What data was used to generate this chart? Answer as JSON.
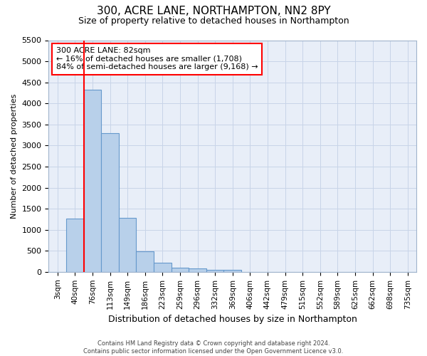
{
  "title": "300, ACRE LANE, NORTHAMPTON, NN2 8PY",
  "subtitle": "Size of property relative to detached houses in Northampton",
  "xlabel": "Distribution of detached houses by size in Northampton",
  "ylabel": "Number of detached properties",
  "footer_line1": "Contains HM Land Registry data © Crown copyright and database right 2024.",
  "footer_line2": "Contains public sector information licensed under the Open Government Licence v3.0.",
  "bar_labels": [
    "3sqm",
    "40sqm",
    "76sqm",
    "113sqm",
    "149sqm",
    "186sqm",
    "223sqm",
    "259sqm",
    "296sqm",
    "332sqm",
    "369sqm",
    "406sqm",
    "442sqm",
    "479sqm",
    "515sqm",
    "552sqm",
    "589sqm",
    "625sqm",
    "662sqm",
    "698sqm",
    "735sqm"
  ],
  "bar_values": [
    0,
    1270,
    4330,
    3300,
    1280,
    480,
    210,
    95,
    75,
    50,
    45,
    0,
    0,
    0,
    0,
    0,
    0,
    0,
    0,
    0,
    0
  ],
  "bar_color": "#b8d0ea",
  "bar_edge_color": "#6699cc",
  "ylim": [
    0,
    5500
  ],
  "yticks": [
    0,
    500,
    1000,
    1500,
    2000,
    2500,
    3000,
    3500,
    4000,
    4500,
    5000,
    5500
  ],
  "grid_color": "#c8d4e8",
  "bg_color": "#e8eef8",
  "red_line_index": 1.5,
  "annotation_text": "300 ACRE LANE: 82sqm\n← 16% of detached houses are smaller (1,708)\n84% of semi-detached houses are larger (9,168) →",
  "annotation_box_color": "white",
  "annotation_border_color": "red",
  "red_line_color": "red",
  "title_fontsize": 11,
  "subtitle_fontsize": 9,
  "ylabel_fontsize": 8,
  "xlabel_fontsize": 9,
  "tick_fontsize": 8,
  "xtick_fontsize": 7.5
}
